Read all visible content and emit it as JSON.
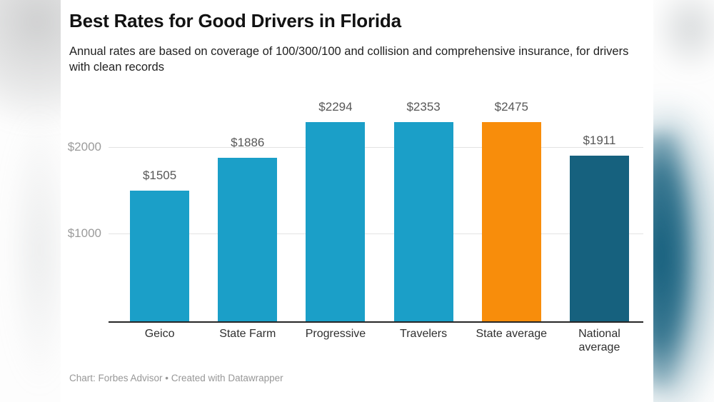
{
  "header": {
    "title": "Best Rates for Good Drivers in Florida",
    "subtitle": "Annual rates are based on coverage of 100/300/100 and collision and comprehensive insurance, for drivers with clean records"
  },
  "footer": {
    "credit": "Chart: Forbes Advisor • Created with Datawrapper"
  },
  "chart_data": {
    "type": "bar",
    "title": "Best Rates for Good Drivers in Florida",
    "subtitle": "Annual rates are based on coverage of 100/300/100 and collision and comprehensive insurance, for drivers with clean records",
    "categories": [
      "Geico",
      "State Farm",
      "Progressive",
      "Travelers",
      "State average",
      "National average"
    ],
    "values": [
      1505,
      1886,
      2294,
      2353,
      2475,
      1911
    ],
    "data_labels": [
      "$1505",
      "$1886",
      "$2294",
      "$2353",
      "$2475",
      "$1911"
    ],
    "bar_colors": [
      "#1b9fc8",
      "#1b9fc8",
      "#1b9fc8",
      "#1b9fc8",
      "#f88d0b",
      "#16617e"
    ],
    "xlabel": "",
    "ylabel": "",
    "y_axis": {
      "ticks": [
        {
          "value": 1000,
          "label": "$1000"
        },
        {
          "value": 2000,
          "label": "$2000"
        }
      ],
      "range": [
        0,
        2566
      ]
    },
    "grid": true,
    "legend": "none",
    "credit": "Chart: Forbes Advisor • Created with Datawrapper"
  },
  "colors": {
    "bar_default": "#1b9fc8",
    "bar_highlight_state": "#f88d0b",
    "bar_national": "#16617e",
    "gridline": "#e3e3e3",
    "axis_baseline": "#262626",
    "tick_label": "#9b9b9b",
    "value_label": "#575757",
    "category_label": "#2f2f2f",
    "backdrop_teal": "#155e7c"
  }
}
